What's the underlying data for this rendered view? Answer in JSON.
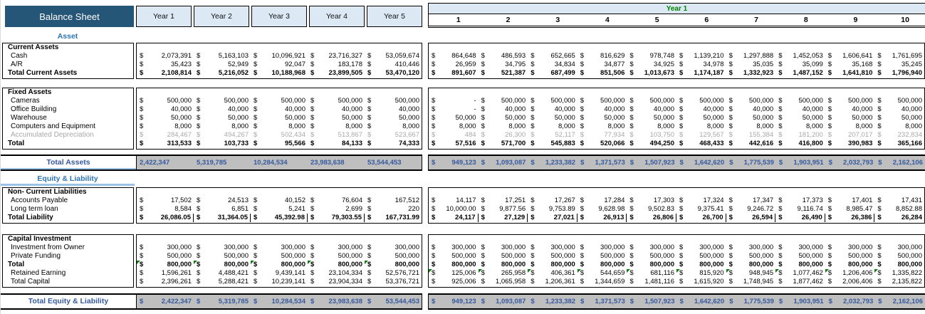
{
  "app": {
    "title": "Balance Sheet"
  },
  "left_panel": {
    "year_headers": [
      "Year 1",
      "Year 2",
      "Year 3",
      "Year 4",
      "Year 5"
    ]
  },
  "right_panel": {
    "year_group_label": "Year 1",
    "months": [
      "1",
      "2",
      "3",
      "4",
      "5",
      "6",
      "7",
      "8",
      "9",
      "10"
    ]
  },
  "sections": {
    "asset_label": "Asset",
    "equity_label": "Equity & Liability"
  },
  "colors": {
    "title_bg": "#255577",
    "header_fill": "#dce9f5",
    "bar_fill": "#bfbfbf",
    "accent_blue": "#2e74b5",
    "grand_text": "#35599e",
    "year_green": "#008000",
    "muted_gray": "#a8a8a8",
    "marker_green": "#117711"
  },
  "table": {
    "currency": "$",
    "rows": [
      {
        "block": "a1",
        "style": "subheader",
        "label": "Current Assets"
      },
      {
        "block": "a1",
        "style": "item",
        "label": "Cash",
        "left": [
          "2,073,391",
          "5,163,103",
          "10,096,921",
          "23,716,327",
          "53,059,674"
        ],
        "right": [
          "864,648",
          "486,593",
          "652,665",
          "816,629",
          "978,748",
          "1,139,210",
          "1,297,888",
          "1,452,053",
          "1,606,641",
          "1,761,695"
        ]
      },
      {
        "block": "a1",
        "style": "item",
        "label": "A/R",
        "left": [
          "35,423",
          "52,949",
          "92,047",
          "183,178",
          "410,446"
        ],
        "right": [
          "26,959",
          "34,795",
          "34,834",
          "34,877",
          "34,925",
          "34,978",
          "35,035",
          "35,099",
          "35,168",
          "35,245"
        ]
      },
      {
        "block": "a1",
        "style": "total",
        "label": "Total Current Assets",
        "left": [
          "2,108,814",
          "5,216,052",
          "10,188,968",
          "23,899,505",
          "53,470,120"
        ],
        "right": [
          "891,607",
          "521,387",
          "687,499",
          "851,506",
          "1,013,673",
          "1,174,187",
          "1,332,923",
          "1,487,152",
          "1,641,810",
          "1,796,940"
        ]
      },
      {
        "block": "a2",
        "style": "subheader",
        "label": "Fixed Assets"
      },
      {
        "block": "a2",
        "style": "item",
        "label": "Cameras",
        "left": [
          "500,000",
          "500,000",
          "500,000",
          "500,000",
          "500,000"
        ],
        "right": [
          "-",
          "500,000",
          "500,000",
          "500,000",
          "500,000",
          "500,000",
          "500,000",
          "500,000",
          "500,000",
          "500,000"
        ]
      },
      {
        "block": "a2",
        "style": "item",
        "label": "Office Building",
        "left": [
          "40,000",
          "40,000",
          "40,000",
          "40,000",
          "40,000"
        ],
        "right": [
          "-",
          "40,000",
          "40,000",
          "40,000",
          "40,000",
          "40,000",
          "40,000",
          "40,000",
          "40,000",
          "40,000"
        ]
      },
      {
        "block": "a2",
        "style": "item",
        "label": "Warehouse",
        "left": [
          "50,000",
          "50,000",
          "50,000",
          "50,000",
          "50,000"
        ],
        "right": [
          "50,000",
          "50,000",
          "50,000",
          "50,000",
          "50,000",
          "50,000",
          "50,000",
          "50,000",
          "50,000",
          "50,000"
        ]
      },
      {
        "block": "a2",
        "style": "item",
        "label": "Computers and Equipment",
        "left": [
          "8,000",
          "8,000",
          "8,000",
          "8,000",
          "8,000"
        ],
        "right": [
          "8,000",
          "8,000",
          "8,000",
          "8,000",
          "8,000",
          "8,000",
          "8,000",
          "8,000",
          "8,000",
          "8,000"
        ]
      },
      {
        "block": "a2",
        "style": "item-gray",
        "label": "Accumulated Depreciation",
        "left": [
          "284,467",
          "494,267",
          "502,434",
          "513,867",
          "523,667"
        ],
        "right": [
          "484",
          "26,300",
          "52,117",
          "77,934",
          "103,750",
          "129,567",
          "155,384",
          "181,200",
          "207,017",
          "232,834"
        ]
      },
      {
        "block": "a2",
        "style": "total",
        "label": "Total",
        "left": [
          "313,533",
          "103,733",
          "95,566",
          "84,133",
          "74,333"
        ],
        "right": [
          "57,516",
          "571,700",
          "545,883",
          "520,066",
          "494,250",
          "468,433",
          "442,616",
          "416,800",
          "390,983",
          "365,166"
        ]
      },
      {
        "block": "abar",
        "style": "grand",
        "label": "Total Assets",
        "left_dollar": false,
        "left": [
          "2,422,347",
          "5,319,785",
          "10,284,534",
          "23,983,638",
          "53,544,453"
        ],
        "right": [
          "949,123",
          "1,093,087",
          "1,233,382",
          "1,371,573",
          "1,507,923",
          "1,642,620",
          "1,775,539",
          "1,903,951",
          "2,032,793",
          "2,162,106"
        ]
      },
      {
        "block": "l1",
        "style": "subheader",
        "label": "Non- Current Liabilities"
      },
      {
        "block": "l1",
        "style": "item",
        "label": "Accounts Payable",
        "left": [
          "17,502",
          "24,513",
          "40,152",
          "76,604",
          "167,512"
        ],
        "right": [
          "14,117",
          "17,251",
          "17,267",
          "17,284",
          "17,303",
          "17,324",
          "17,347",
          "17,373",
          "17,401",
          "17,431"
        ]
      },
      {
        "block": "l1",
        "style": "item",
        "label": "Long term loan",
        "left": [
          "8,584",
          "6,851",
          "5,241",
          "2,699",
          "220"
        ],
        "right": [
          "10,000.00",
          "9,877.56",
          "9,753.89",
          "9,628.98",
          "9,502.83",
          "9,375.41",
          "9,246.72",
          "9,116.74",
          "8,985.47",
          "8,852.88"
        ]
      },
      {
        "block": "l1",
        "style": "total-sep",
        "label": "Total Liability",
        "left": [
          "26,086.05",
          "31,364.05",
          "45,392.98",
          "79,303.55",
          "167,731.99"
        ],
        "right": [
          "24,117",
          "27,129",
          "27,021",
          "26,913",
          "26,806",
          "26,700",
          "26,594",
          "26,490",
          "26,386",
          "26,284"
        ]
      },
      {
        "block": "l2",
        "style": "subheader",
        "label": "Capital Investment"
      },
      {
        "block": "l2",
        "style": "item",
        "label": "Investment from Owner",
        "left": [
          "300,000",
          "300,000",
          "300,000",
          "300,000",
          "300,000"
        ],
        "right": [
          "300,000",
          "300,000",
          "300,000",
          "300,000",
          "300,000",
          "300,000",
          "300,000",
          "300,000",
          "300,000",
          "300,000"
        ]
      },
      {
        "block": "l2",
        "style": "item",
        "label": "Private Funding",
        "left": [
          "500,000",
          "500,000",
          "500,000",
          "500,000",
          "500,000"
        ],
        "right": [
          "500,000",
          "500,000",
          "500,000",
          "500,000",
          "500,000",
          "500,000",
          "500,000",
          "500,000",
          "500,000",
          "500,000"
        ]
      },
      {
        "block": "l2",
        "style": "total",
        "label": "Total",
        "left_markers": true,
        "left": [
          "800,000",
          "800,000",
          "800,000",
          "800,000",
          "800,000"
        ],
        "right": [
          "800,000",
          "800,000",
          "800,000",
          "800,000",
          "800,000",
          "800,000",
          "800,000",
          "800,000",
          "800,000",
          "800,000"
        ]
      },
      {
        "block": "l2",
        "style": "item",
        "label": "Retained Earning",
        "right_markers": true,
        "left": [
          "1,596,261",
          "4,488,421",
          "9,439,141",
          "23,104,334",
          "52,576,721"
        ],
        "right": [
          "125,006",
          "265,958",
          "406,361",
          "544,659",
          "681,116",
          "815,920",
          "948,945",
          "1,077,462",
          "1,206,406",
          "1,335,822"
        ]
      },
      {
        "block": "l2",
        "style": "item",
        "label": "Total Capital",
        "left": [
          "2,396,261",
          "5,288,421",
          "10,239,141",
          "23,904,334",
          "53,376,721"
        ],
        "right": [
          "925,006",
          "1,065,958",
          "1,206,361",
          "1,344,659",
          "1,481,116",
          "1,615,920",
          "1,748,945",
          "1,877,462",
          "2,006,406",
          "2,135,822"
        ]
      },
      {
        "block": "ebar",
        "style": "grand",
        "label": "Total Equity & Liability",
        "left": [
          "2,422,347",
          "5,319,785",
          "10,284,534",
          "23,983,638",
          "53,544,453"
        ],
        "right": [
          "949,123",
          "1,093,087",
          "1,233,382",
          "1,371,573",
          "1,507,923",
          "1,642,620",
          "1,775,539",
          "1,903,951",
          "2,032,793",
          "2,162,106"
        ]
      }
    ]
  }
}
